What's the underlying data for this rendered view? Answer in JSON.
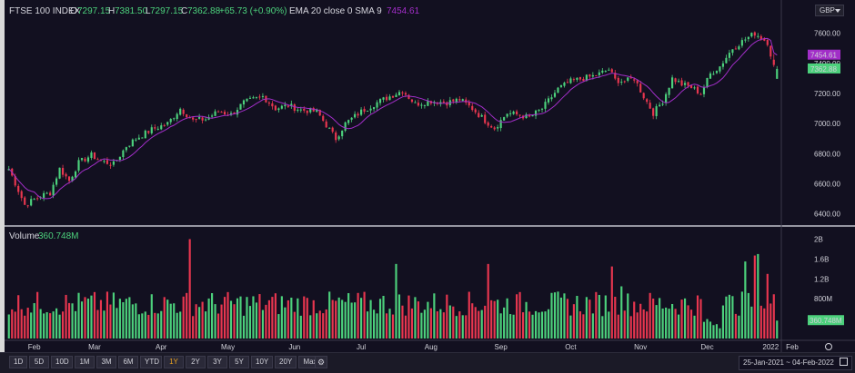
{
  "header": {
    "symbol": "FTSE 100 INDEX",
    "o_label": "O",
    "o_value": "7297.15",
    "h_label": "H",
    "h_value": "7381.50",
    "l_label": "L",
    "l_value": "7297.15",
    "c_label": "C",
    "c_value": "7362.88",
    "change": "+65.73 (+0.90%)",
    "indicator_label": "EMA 20 close 0 SMA 9",
    "indicator_value": "7454.61"
  },
  "currency": "GBP",
  "volume_label": "Volume",
  "volume_value": "360.748M",
  "price_axis": [
    "7600.00",
    "7400.00",
    "7200.00",
    "7000.00",
    "6800.00",
    "6600.00",
    "6400.00"
  ],
  "price_tags": {
    "sma": "7454.61",
    "close": "7362.88"
  },
  "volume_axis": [
    "2B",
    "1.6B",
    "1.2B",
    "800M",
    "400M"
  ],
  "volume_tag": "360.748M",
  "time_axis": [
    "Feb",
    "Mar",
    "Apr",
    "May",
    "Jun",
    "Jul",
    "Aug",
    "Sep",
    "Oct",
    "Nov",
    "Dec",
    "2022",
    "Feb"
  ],
  "range_buttons": [
    "1D",
    "5D",
    "10D",
    "1M",
    "3M",
    "6M",
    "YTD",
    "1Y",
    "2Y",
    "3Y",
    "5Y",
    "10Y",
    "20Y",
    "Max"
  ],
  "active_range": "1Y",
  "date_range": {
    "from": "25-Jan-2021",
    "sep": "~",
    "to": "04-Feb-2022"
  },
  "colors": {
    "up": "#4cd17c",
    "down": "#e8364f",
    "sma": "#a22ec8",
    "background": "#121020",
    "active_range": "#e8a020"
  },
  "chart_data": {
    "type": "candlestick",
    "title": "FTSE 100 INDEX",
    "period": "1Y",
    "ohlc_last": {
      "open": 7297.15,
      "high": 7381.5,
      "low": 7297.15,
      "close": 7362.88,
      "change": 65.73,
      "change_pct": 0.9
    },
    "ylim": [
      6350,
      7700
    ],
    "y_ticks": [
      6400,
      6600,
      6800,
      7000,
      7200,
      7400,
      7600
    ],
    "x_months": [
      "Feb",
      "Mar",
      "Apr",
      "May",
      "Jun",
      "Jul",
      "Aug",
      "Sep",
      "Oct",
      "Nov",
      "Dec",
      "2022",
      "Feb"
    ],
    "price_anchors": [
      [
        0,
        6700
      ],
      [
        5,
        6460
      ],
      [
        10,
        6520
      ],
      [
        13,
        6540
      ],
      [
        16,
        6700
      ],
      [
        19,
        6620
      ],
      [
        22,
        6740
      ],
      [
        26,
        6790
      ],
      [
        29,
        6750
      ],
      [
        33,
        6730
      ],
      [
        37,
        6850
      ],
      [
        40,
        6900
      ],
      [
        45,
        6960
      ],
      [
        50,
        7000
      ],
      [
        54,
        7100
      ],
      [
        58,
        7020
      ],
      [
        62,
        7030
      ],
      [
        66,
        7080
      ],
      [
        70,
        7060
      ],
      [
        74,
        7140
      ],
      [
        80,
        7180
      ],
      [
        84,
        7100
      ],
      [
        88,
        7120
      ],
      [
        92,
        7090
      ],
      [
        97,
        7080
      ],
      [
        100,
        6990
      ],
      [
        103,
        6900
      ],
      [
        106,
        7000
      ],
      [
        111,
        7080
      ],
      [
        116,
        7140
      ],
      [
        120,
        7180
      ],
      [
        124,
        7220
      ],
      [
        128,
        7130
      ],
      [
        133,
        7150
      ],
      [
        138,
        7140
      ],
      [
        142,
        7160
      ],
      [
        146,
        7100
      ],
      [
        150,
        7020
      ],
      [
        153,
        6970
      ],
      [
        157,
        7070
      ],
      [
        160,
        7060
      ],
      [
        164,
        7040
      ],
      [
        168,
        7100
      ],
      [
        173,
        7230
      ],
      [
        177,
        7280
      ],
      [
        181,
        7300
      ],
      [
        185,
        7320
      ],
      [
        189,
        7360
      ],
      [
        191,
        7290
      ],
      [
        194,
        7280
      ],
      [
        197,
        7300
      ],
      [
        200,
        7180
      ],
      [
        203,
        7070
      ],
      [
        206,
        7150
      ],
      [
        209,
        7300
      ],
      [
        212,
        7260
      ],
      [
        215,
        7240
      ],
      [
        218,
        7200
      ],
      [
        221,
        7330
      ],
      [
        224,
        7380
      ],
      [
        228,
        7500
      ],
      [
        232,
        7560
      ],
      [
        235,
        7600
      ],
      [
        237,
        7570
      ],
      [
        239,
        7540
      ],
      [
        241,
        7380
      ],
      [
        242,
        7362.88
      ]
    ],
    "sma_series": {
      "name": "EMA 20 close 0 SMA 9",
      "last": 7454.61
    },
    "volume": {
      "ylim": [
        0,
        2100000000
      ],
      "y_ticks": [
        "400M",
        "800M",
        "1.2B",
        "1.6B",
        "2B"
      ],
      "last": 360748000
    }
  }
}
